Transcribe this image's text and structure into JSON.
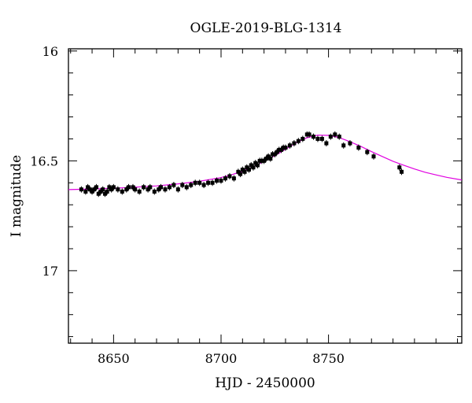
{
  "chart_data": {
    "type": "scatter",
    "title": "OGLE-2019-BLG-1314",
    "xlabel": "HJD - 2450000",
    "ylabel": "I magnitude",
    "xlim": [
      8629,
      8812
    ],
    "ylim": [
      17.33,
      15.99
    ],
    "y_inverted": true,
    "xticks_major": [
      8650,
      8700,
      8750
    ],
    "yticks_major": [
      16,
      16.5,
      17
    ],
    "xtick_labels": [
      "8650",
      "8700",
      "8750"
    ],
    "ytick_labels": [
      "16",
      "16.5",
      "17"
    ],
    "grid": false,
    "colors": {
      "points": "#000000",
      "model": "#e000e0",
      "axes": "#000000"
    },
    "series": [
      {
        "kind": "points",
        "x": [
          8635,
          8637,
          8638,
          8639,
          8640,
          8641,
          8642,
          8643,
          8644,
          8645,
          8646,
          8647,
          8648,
          8649,
          8650,
          8652,
          8654,
          8656,
          8657,
          8659,
          8660,
          8662,
          8664,
          8666,
          8667,
          8669,
          8671,
          8672,
          8674,
          8676,
          8678,
          8680,
          8682,
          8684,
          8686,
          8688,
          8690,
          8692,
          8694,
          8696,
          8698,
          8700,
          8702,
          8704,
          8706,
          8708,
          8709,
          8710,
          8711,
          8712,
          8713,
          8714,
          8715,
          8716,
          8717,
          8718,
          8719,
          8720,
          8721,
          8722,
          8723,
          8724,
          8725,
          8726,
          8727,
          8728,
          8729,
          8730,
          8732,
          8734,
          8736,
          8738,
          8740,
          8741,
          8743,
          8745,
          8747,
          8749,
          8751,
          8753,
          8755,
          8757,
          8760,
          8764,
          8768,
          8771,
          8783,
          8784
        ],
        "y": [
          16.63,
          16.64,
          16.62,
          16.63,
          16.64,
          16.63,
          16.62,
          16.65,
          16.64,
          16.63,
          16.65,
          16.64,
          16.62,
          16.63,
          16.62,
          16.63,
          16.64,
          16.63,
          16.62,
          16.62,
          16.63,
          16.64,
          16.62,
          16.63,
          16.62,
          16.64,
          16.63,
          16.62,
          16.63,
          16.62,
          16.61,
          16.63,
          16.61,
          16.62,
          16.61,
          16.6,
          16.6,
          16.61,
          16.6,
          16.6,
          16.59,
          16.59,
          16.58,
          16.57,
          16.58,
          16.55,
          16.56,
          16.54,
          16.55,
          16.53,
          16.54,
          16.52,
          16.53,
          16.51,
          16.52,
          16.5,
          16.5,
          16.5,
          16.49,
          16.48,
          16.49,
          16.47,
          16.47,
          16.46,
          16.45,
          16.45,
          16.44,
          16.44,
          16.43,
          16.42,
          16.41,
          16.4,
          16.38,
          16.38,
          16.39,
          16.4,
          16.4,
          16.42,
          16.39,
          16.38,
          16.39,
          16.43,
          16.42,
          16.44,
          16.46,
          16.48,
          16.53,
          16.55
        ]
      },
      {
        "kind": "model",
        "x": [
          8629,
          8640,
          8650,
          8660,
          8670,
          8680,
          8690,
          8700,
          8705,
          8710,
          8715,
          8720,
          8725,
          8730,
          8735,
          8740,
          8745,
          8750,
          8755,
          8760,
          8765,
          8770,
          8775,
          8780,
          8785,
          8790,
          8795,
          8800,
          8805,
          8812
        ],
        "y": [
          16.631,
          16.628,
          16.625,
          16.62,
          16.614,
          16.605,
          16.593,
          16.576,
          16.563,
          16.547,
          16.527,
          16.502,
          16.477,
          16.447,
          16.418,
          16.395,
          16.383,
          16.384,
          16.394,
          16.413,
          16.434,
          16.458,
          16.48,
          16.502,
          16.52,
          16.537,
          16.552,
          16.564,
          16.575,
          16.587
        ]
      }
    ]
  }
}
